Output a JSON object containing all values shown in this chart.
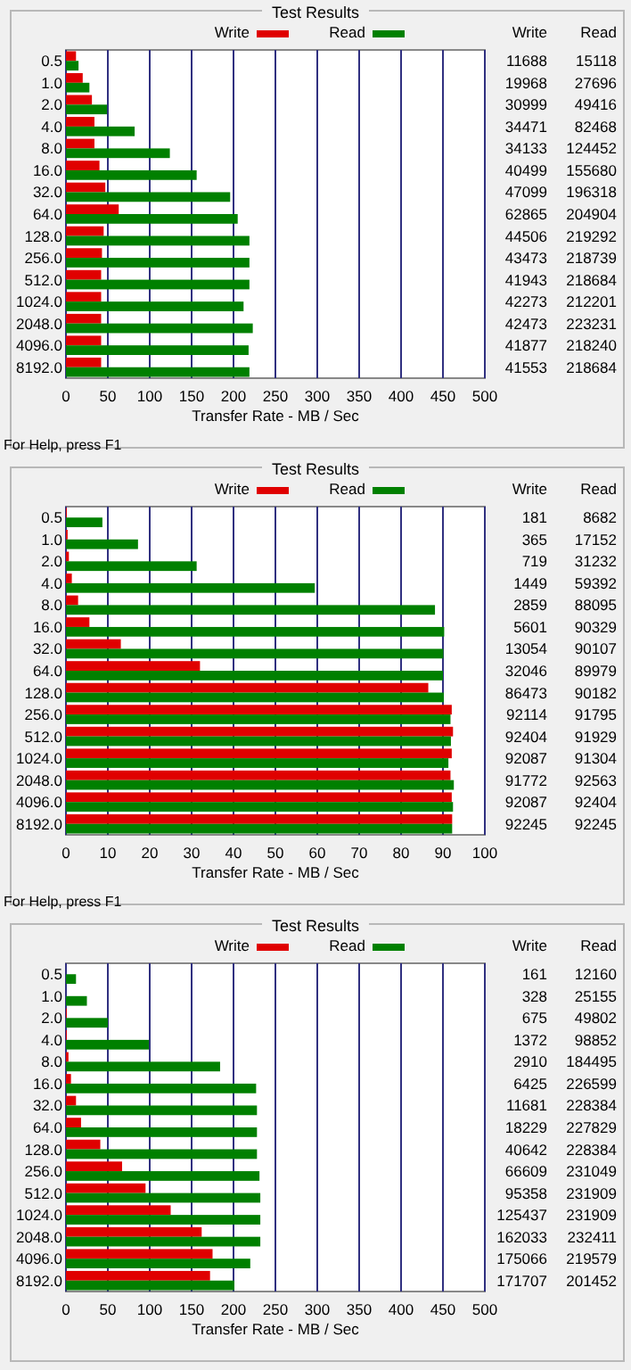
{
  "chart_data": [
    {
      "type": "bar",
      "orientation": "horizontal",
      "title": "Test Results",
      "xlabel": "Transfer Rate - MB / Sec",
      "categories": [
        "0.5",
        "1.0",
        "2.0",
        "4.0",
        "8.0",
        "16.0",
        "32.0",
        "64.0",
        "128.0",
        "256.0",
        "512.0",
        "1024.0",
        "2048.0",
        "4096.0",
        "8192.0"
      ],
      "xlim": [
        0,
        500
      ],
      "xticks": [
        0,
        50,
        100,
        150,
        200,
        250,
        300,
        350,
        400,
        450,
        500
      ],
      "grid": "x",
      "legend": "top",
      "annotations": [
        "For Help, press F1"
      ],
      "series": [
        {
          "name": "Write",
          "color": "#e00000",
          "values": [
            12,
            20,
            31,
            34,
            34,
            40,
            47,
            63,
            45,
            43,
            42,
            42,
            42,
            42,
            42
          ]
        },
        {
          "name": "Read",
          "color": "#008000",
          "values": [
            15,
            28,
            49,
            82,
            124,
            156,
            196,
            205,
            219,
            219,
            219,
            212,
            223,
            218,
            219
          ]
        }
      ]
    },
    {
      "type": "other",
      "annotations": [
        "Write",
        "Read",
        "11688",
        "15118",
        "19968",
        "27696",
        "30999",
        "49416",
        "34471",
        "82468",
        "34133",
        "124452",
        "40499",
        "155680",
        "47099",
        "196318",
        "62865",
        "204904",
        "44506",
        "219292",
        "43473",
        "218739",
        "41943",
        "218684",
        "42273",
        "212201",
        "42473",
        "223231",
        "41877",
        "218240",
        "41553",
        "218684"
      ]
    },
    {
      "type": "bar",
      "orientation": "horizontal",
      "title": "Test Results",
      "xlabel": "Transfer Rate - MB / Sec",
      "categories": [
        "0.5",
        "1.0",
        "2.0",
        "4.0",
        "8.0",
        "16.0",
        "32.0",
        "64.0",
        "128.0",
        "256.0",
        "512.0",
        "1024.0",
        "2048.0",
        "4096.0",
        "8192.0"
      ],
      "xlim": [
        0,
        100
      ],
      "xticks": [
        0,
        10,
        20,
        30,
        40,
        50,
        60,
        70,
        80,
        90,
        100
      ],
      "grid": "x",
      "legend": "top",
      "annotations": [
        "For Help, press F1"
      ],
      "series": [
        {
          "name": "Write",
          "color": "#e00000",
          "values": [
            0.2,
            0.4,
            0.7,
            1.4,
            2.9,
            5.6,
            13.1,
            32,
            86.5,
            92.1,
            92.4,
            92.1,
            91.8,
            92.1,
            92.2
          ]
        },
        {
          "name": "Read",
          "color": "#008000",
          "values": [
            8.7,
            17.2,
            31.2,
            59.4,
            88.1,
            90.3,
            90.1,
            90,
            90.2,
            91.8,
            91.9,
            91.3,
            92.6,
            92.4,
            92.2
          ]
        }
      ]
    },
    {
      "type": "other",
      "annotations": [
        "Write",
        "Read",
        "181",
        "8682",
        "365",
        "17152",
        "719",
        "31232",
        "1449",
        "59392",
        "2859",
        "88095",
        "5601",
        "90329",
        "13054",
        "90107",
        "32046",
        "89979",
        "86473",
        "90182",
        "92114",
        "91795",
        "92404",
        "91929",
        "92087",
        "91304",
        "91772",
        "92563",
        "92087",
        "92404",
        "92245",
        "92245"
      ]
    },
    {
      "type": "bar",
      "orientation": "horizontal",
      "title": "Test Results",
      "xlabel": "Transfer Rate - MB / Sec",
      "categories": [
        "0.5",
        "1.0",
        "2.0",
        "4.0",
        "8.0",
        "16.0",
        "32.0",
        "64.0",
        "128.0",
        "256.0",
        "512.0",
        "1024.0",
        "2048.0",
        "4096.0",
        "8192.0"
      ],
      "xlim": [
        0,
        500
      ],
      "xticks": [
        0,
        50,
        100,
        150,
        200,
        250,
        300,
        350,
        400,
        450,
        500
      ],
      "grid": "x",
      "legend": "top",
      "series": [
        {
          "name": "Write",
          "color": "#e00000",
          "values": [
            0,
            0,
            1,
            1,
            3,
            6,
            12,
            18,
            41,
            67,
            95,
            125,
            162,
            175,
            172
          ]
        },
        {
          "name": "Read",
          "color": "#008000",
          "values": [
            12,
            25,
            50,
            99,
            184,
            227,
            228,
            228,
            228,
            231,
            232,
            232,
            232,
            220,
            201
          ]
        }
      ]
    },
    {
      "type": "other",
      "annotations": [
        "Write",
        "Read",
        "161",
        "12160",
        "328",
        "25155",
        "675",
        "49802",
        "1372",
        "98852",
        "2910",
        "184495",
        "6425",
        "226599",
        "11681",
        "228384",
        "18229",
        "227829",
        "40642",
        "228384",
        "66609",
        "231049",
        "95358",
        "231909",
        "125437",
        "231909",
        "162033",
        "232411",
        "175066",
        "219579",
        "171707",
        "201452"
      ]
    }
  ]
}
